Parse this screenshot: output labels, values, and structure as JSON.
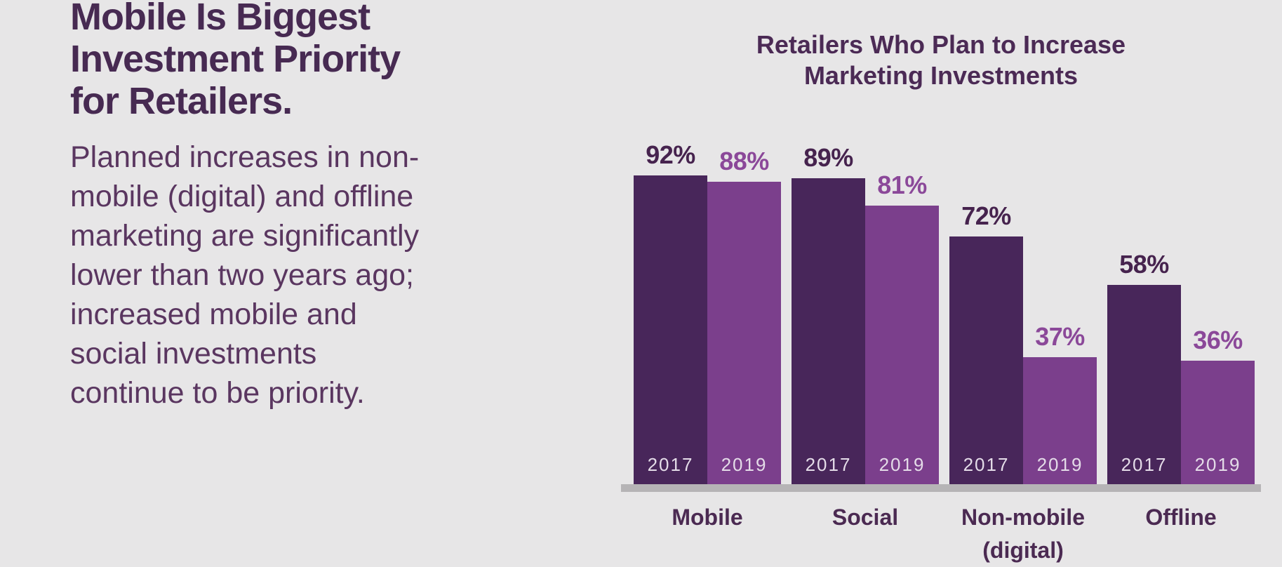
{
  "page": {
    "background_color": "#e7e6e7"
  },
  "hero": {
    "title": "Mobile Is Biggest Investment Priority for Retailers.",
    "title_lines": [
      "Mobile Is Biggest",
      "Investment Priority",
      "for Retailers."
    ],
    "title_color": "#472a52",
    "body": "Planned increases in non-mobile (digital) and offline marketing are significantly lower than two years ago; increased mobile and social investments continue to be priority.",
    "body_lines": [
      "Planned increases in non-",
      "mobile (digital) and offline",
      "marketing are significantly",
      "lower than two years ago;",
      "increased mobile and",
      "social investments",
      "continue to be priority."
    ],
    "body_color": "#5a3660"
  },
  "chart_data": {
    "type": "bar",
    "title": "Retailers Who Plan to Increase Marketing Investments",
    "title_lines": [
      "Retailers Who Plan to Increase",
      "Marketing Investments"
    ],
    "categories": [
      "Mobile",
      "Social",
      "Non-mobile (digital)",
      "Offline"
    ],
    "category_label_lines": [
      [
        "Mobile"
      ],
      [
        "Social"
      ],
      [
        "Non-mobile",
        "(digital)"
      ],
      [
        "Offline"
      ]
    ],
    "series": [
      {
        "name": "2017",
        "values": [
          92,
          89,
          72,
          58
        ],
        "bar_color": "#48265a",
        "label_color": "#46234e"
      },
      {
        "name": "2019",
        "values": [
          88,
          81,
          37,
          36
        ],
        "bar_color": "#7b3f8c",
        "label_color": "#8b4899"
      }
    ],
    "value_suffix": "%",
    "ylim": [
      0,
      100
    ],
    "grid": false,
    "xlabel": "",
    "ylabel": "",
    "legend_position": "year-labels-inside-bar-bottom",
    "year_label_color": "#e4dce8",
    "axis_line_color": "#b6b4b6",
    "title_color": "#4b2a55",
    "category_label_color": "#4b2a52"
  }
}
